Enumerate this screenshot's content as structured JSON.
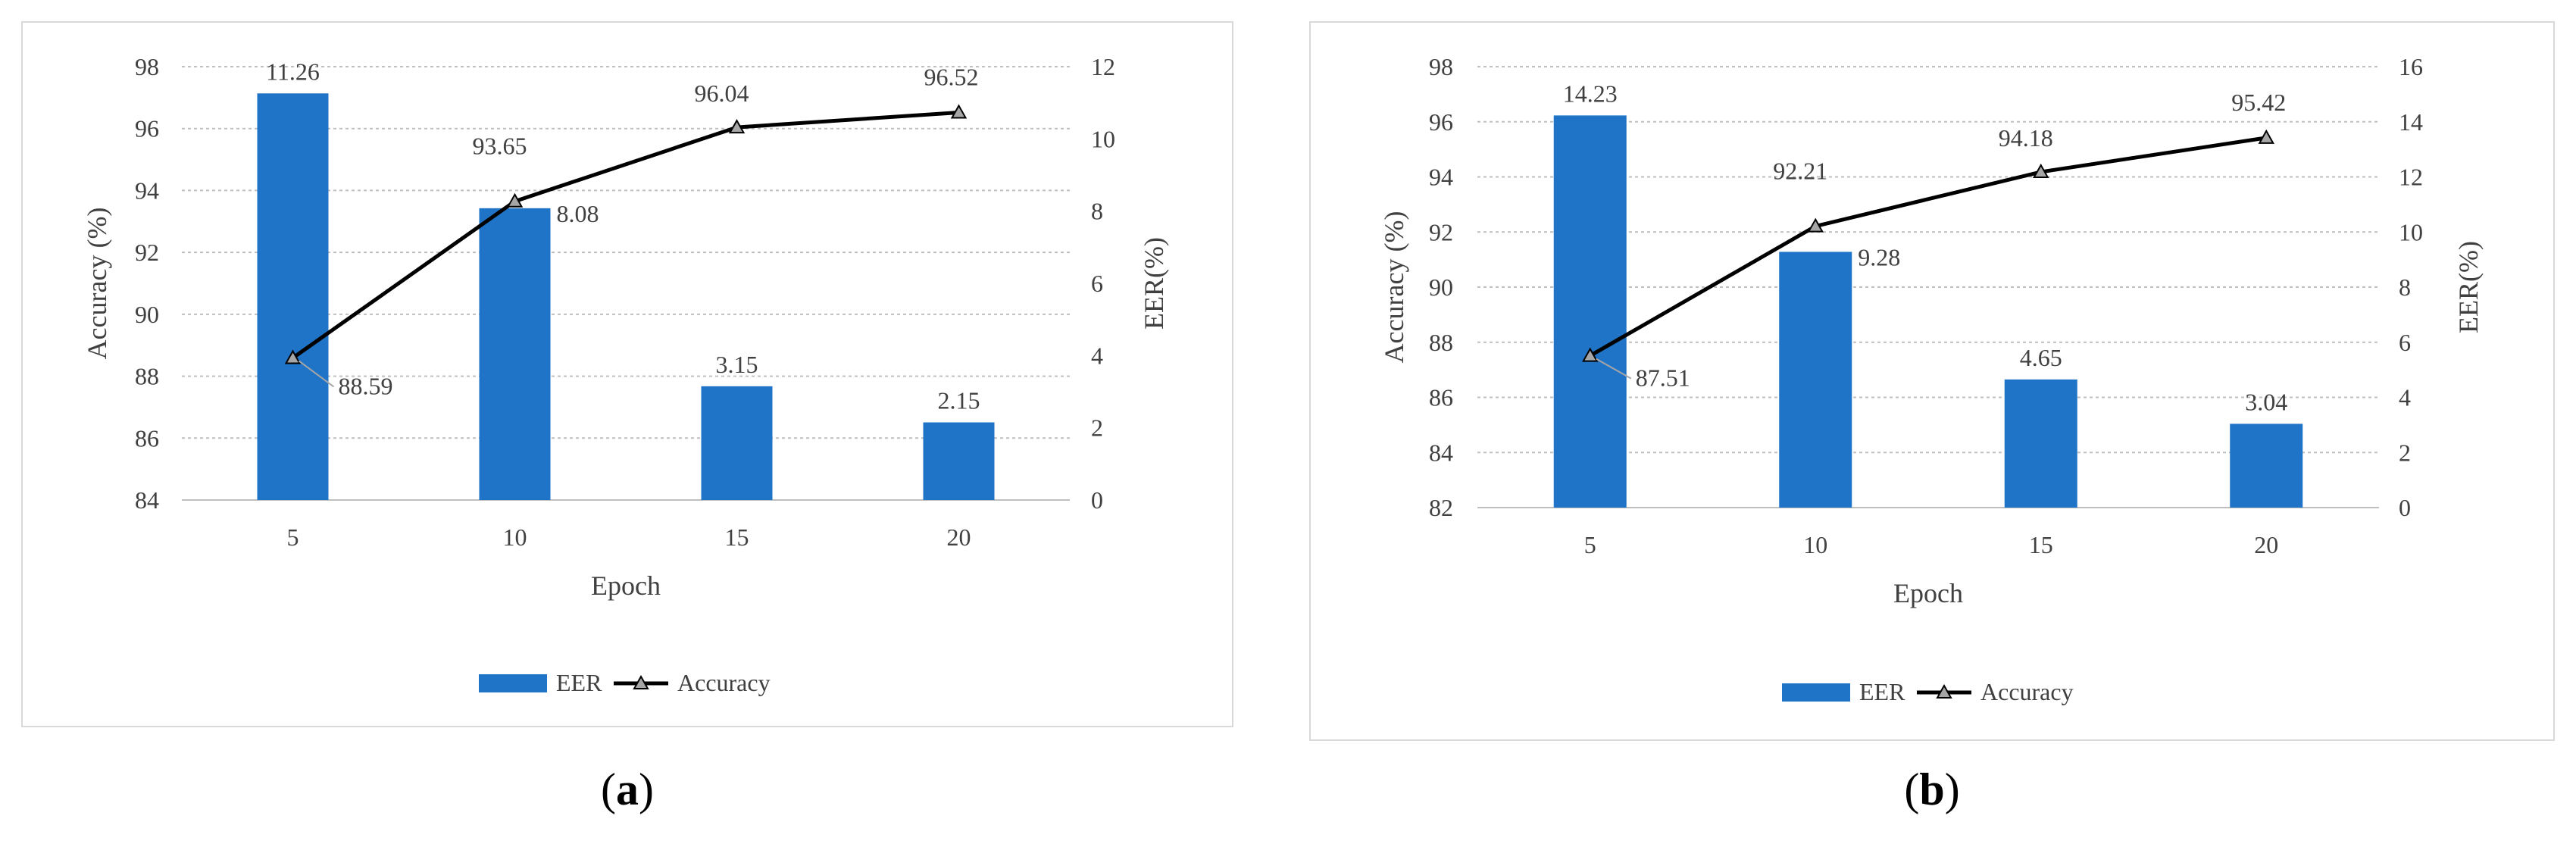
{
  "chart_data": [
    {
      "panel": "a",
      "type": "bar+line",
      "categories": [
        "5",
        "10",
        "15",
        "20"
      ],
      "xlabel": "Epoch",
      "ylabel_left": "Accuracy (%)",
      "ylabel_right": "EER(%)",
      "left_ylim": [
        84,
        98
      ],
      "left_ticks": [
        "84",
        "86",
        "88",
        "90",
        "92",
        "94",
        "96",
        "98"
      ],
      "right_ylim": [
        0,
        12
      ],
      "right_ticks": [
        "0",
        "2",
        "4",
        "6",
        "8",
        "10",
        "12"
      ],
      "series": [
        {
          "name": "EER",
          "kind": "bar",
          "axis": "right",
          "values": [
            11.26,
            8.08,
            3.15,
            2.15
          ],
          "labels": [
            "11.26",
            "8.08",
            "3.15",
            "2.15"
          ],
          "color": "#1f74c7"
        },
        {
          "name": "Accuracy",
          "kind": "line",
          "axis": "left",
          "values": [
            88.59,
            93.65,
            96.04,
            96.52
          ],
          "labels": [
            "88.59",
            "93.65",
            "96.04",
            "96.52"
          ],
          "color": "#000000"
        }
      ],
      "legend": [
        "EER",
        "Accuracy"
      ],
      "grid": true,
      "legend_position": "bottom"
    },
    {
      "panel": "b",
      "type": "bar+line",
      "categories": [
        "5",
        "10",
        "15",
        "20"
      ],
      "xlabel": "Epoch",
      "ylabel_left": "Accuracy (%)",
      "ylabel_right": "EER(%)",
      "left_ylim": [
        82,
        98
      ],
      "left_ticks": [
        "82",
        "84",
        "86",
        "88",
        "90",
        "92",
        "94",
        "96",
        "98"
      ],
      "right_ylim": [
        0,
        16
      ],
      "right_ticks": [
        "0",
        "2",
        "4",
        "6",
        "8",
        "10",
        "12",
        "14",
        "16"
      ],
      "series": [
        {
          "name": "EER",
          "kind": "bar",
          "axis": "right",
          "values": [
            14.23,
            9.28,
            4.65,
            3.04
          ],
          "labels": [
            "14.23",
            "9.28",
            "4.65",
            "3.04"
          ],
          "color": "#1f74c7"
        },
        {
          "name": "Accuracy",
          "kind": "line",
          "axis": "left",
          "values": [
            87.51,
            92.21,
            94.18,
            95.42
          ],
          "labels": [
            "87.51",
            "92.21",
            "94.18",
            "95.42"
          ],
          "color": "#000000"
        }
      ],
      "legend": [
        "EER",
        "Accuracy"
      ],
      "grid": true,
      "legend_position": "bottom"
    }
  ],
  "sublabels": {
    "a": "a",
    "b": "b"
  }
}
